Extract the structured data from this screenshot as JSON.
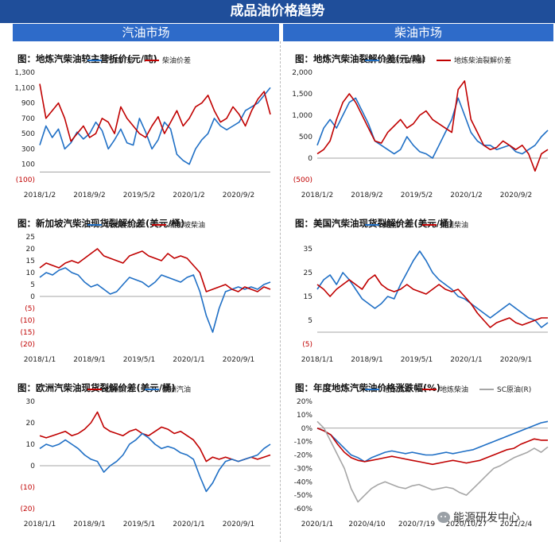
{
  "page": {
    "title": "成品油价格趋势",
    "left_header": "汽油市场",
    "right_header": "柴油市场"
  },
  "watermark": "能源研发中心",
  "colors": {
    "blue": "#1f6fc5",
    "red": "#c00000",
    "gray": "#a6a6a6",
    "negtick": "#c00000"
  },
  "panels": [
    {
      "title": "图：地炼汽柴油较主营折价(元/吨)",
      "chart_data": {
        "type": "line",
        "x_ticks": [
          "2018/1/2",
          "2018/9/2",
          "2019/5/2",
          "2020/1/2",
          "2020/9/2"
        ],
        "y_ticks": [
          "1,300",
          "1,100",
          "900",
          "700",
          "500",
          "300",
          "100",
          "(100)"
        ],
        "ylim": [
          -100,
          1300
        ],
        "legend_position": "top",
        "series": [
          {
            "name": "汽油价差",
            "color": "#1f6fc5",
            "values": [
              350,
              600,
              450,
              560,
              300,
              380,
              520,
              430,
              500,
              650,
              540,
              300,
              420,
              560,
              380,
              350,
              700,
              520,
              300,
              420,
              650,
              560,
              230,
              150,
              100,
              300,
              420,
              500,
              700,
              600,
              550,
              600,
              650,
              800,
              850,
              900,
              1000,
              1100
            ]
          },
          {
            "name": "柴油价差",
            "color": "#c00000",
            "values": [
              1150,
              700,
              800,
              900,
              700,
              400,
              500,
              600,
              450,
              500,
              700,
              650,
              500,
              850,
              700,
              600,
              500,
              450,
              600,
              720,
              500,
              650,
              800,
              600,
              700,
              850,
              900,
              1000,
              800,
              650,
              700,
              850,
              750,
              600,
              800,
              950,
              1050,
              750
            ]
          }
        ]
      }
    },
    {
      "title": "图：地炼汽柴油裂解价差(元/吨)",
      "chart_data": {
        "type": "line",
        "x_ticks": [
          "2018/1/2",
          "2018/9/2",
          "2019/5/2",
          "2020/1/2",
          "2020/9/2"
        ],
        "y_ticks": [
          "2,000",
          "1,500",
          "1,000",
          "500",
          "0",
          "(500)"
        ],
        "ylim": [
          -500,
          2000
        ],
        "legend_position": "top",
        "series": [
          {
            "name": "地炼汽油裂解",
            "color": "#1f6fc5",
            "values": [
              300,
              700,
              900,
              700,
              1000,
              1300,
              1400,
              1100,
              800,
              400,
              300,
              200,
              100,
              200,
              500,
              300,
              150,
              100,
              0,
              300,
              600,
              900,
              1400,
              1000,
              600,
              400,
              300,
              300,
              200,
              250,
              300,
              150,
              100,
              200,
              300,
              500,
              650
            ]
          },
          {
            "name": "地炼柴油裂解价差",
            "color": "#c00000",
            "values": [
              100,
              200,
              400,
              900,
              1300,
              1500,
              1300,
              1000,
              700,
              400,
              350,
              600,
              750,
              900,
              700,
              800,
              1000,
              1100,
              900,
              800,
              700,
              600,
              1600,
              1800,
              900,
              600,
              300,
              200,
              250,
              400,
              300,
              200,
              300,
              100,
              -300,
              100,
              200
            ]
          }
        ]
      }
    },
    {
      "title": "图：新加坡汽柴油现货裂解价差(美元/桶)",
      "chart_data": {
        "type": "line",
        "x_ticks": [
          "2018/1/1",
          "2018/9/1",
          "2019/5/1",
          "2020/1/1",
          "2020/9/1"
        ],
        "y_ticks": [
          "25",
          "20",
          "15",
          "10",
          "5",
          "0",
          "(5)",
          "(10)",
          "(15)",
          "(20)"
        ],
        "ylim": [
          -20,
          25
        ],
        "legend_position": "top",
        "series": [
          {
            "name": "新加坡汽油",
            "color": "#1f6fc5",
            "values": [
              8,
              10,
              9,
              11,
              12,
              10,
              9,
              6,
              4,
              5,
              3,
              1,
              2,
              5,
              8,
              7,
              6,
              4,
              6,
              9,
              8,
              7,
              6,
              8,
              9,
              2,
              -8,
              -15,
              -5,
              2,
              3,
              4,
              3,
              4,
              3,
              5,
              6
            ]
          },
          {
            "name": "新加坡柴油",
            "color": "#c00000",
            "values": [
              12,
              14,
              13,
              12,
              14,
              15,
              14,
              16,
              18,
              20,
              17,
              16,
              15,
              14,
              17,
              18,
              19,
              17,
              16,
              15,
              18,
              16,
              17,
              16,
              13,
              10,
              2,
              3,
              4,
              5,
              3,
              2,
              4,
              3,
              2,
              4,
              3
            ]
          }
        ]
      }
    },
    {
      "title": "图：美国汽柴油现货裂解价差(美元/桶)",
      "chart_data": {
        "type": "line",
        "x_ticks": [
          "2018/1/1",
          "2018/9/1",
          "2019/5/1",
          "2020/1/1",
          "2020/9/1"
        ],
        "y_ticks": [
          "35",
          "25",
          "15",
          "5",
          "(5)"
        ],
        "ylim": [
          -5,
          40
        ],
        "legend_position": "top",
        "series": [
          {
            "name": "美国汽油",
            "color": "#1f6fc5",
            "values": [
              18,
              22,
              24,
              20,
              25,
              22,
              18,
              14,
              12,
              10,
              12,
              15,
              14,
              20,
              25,
              30,
              34,
              30,
              25,
              22,
              20,
              18,
              15,
              14,
              12,
              10,
              8,
              6,
              8,
              10,
              12,
              10,
              8,
              6,
              5,
              2,
              4
            ]
          },
          {
            "name": "美国柴油",
            "color": "#c00000",
            "values": [
              20,
              18,
              15,
              18,
              20,
              22,
              20,
              18,
              22,
              24,
              20,
              18,
              17,
              18,
              20,
              18,
              17,
              16,
              18,
              20,
              18,
              17,
              18,
              15,
              12,
              8,
              5,
              2,
              4,
              5,
              6,
              4,
              3,
              4,
              5,
              6,
              6
            ]
          }
        ]
      }
    },
    {
      "title": "图：欧洲汽柴油现货裂解价差(美元/桶)",
      "chart_data": {
        "type": "line",
        "x_ticks": [
          "2018/1/1",
          "2018/9/1",
          "2019/5/1",
          "2020/1/1",
          "2020/9/1"
        ],
        "y_ticks": [
          "30",
          "20",
          "10",
          "0",
          "(10)",
          "(20)"
        ],
        "ylim": [
          -20,
          30
        ],
        "legend_position": "top",
        "series": [
          {
            "name": "欧洲柴油",
            "color": "#c00000",
            "values": [
              14,
              13,
              14,
              15,
              16,
              14,
              15,
              17,
              20,
              25,
              18,
              16,
              15,
              14,
              16,
              17,
              15,
              14,
              16,
              18,
              17,
              15,
              16,
              14,
              12,
              8,
              2,
              4,
              3,
              4,
              3,
              2,
              3,
              4,
              3,
              4,
              5
            ]
          },
          {
            "name": "欧洲汽油",
            "color": "#1f6fc5",
            "values": [
              8,
              10,
              9,
              10,
              12,
              10,
              8,
              5,
              3,
              2,
              -3,
              0,
              2,
              5,
              10,
              12,
              15,
              13,
              10,
              8,
              9,
              8,
              6,
              5,
              3,
              -5,
              -12,
              -8,
              -2,
              2,
              3,
              2,
              3,
              4,
              5,
              8,
              10
            ]
          }
        ]
      }
    },
    {
      "title": "图：年度地炼汽柴油价格涨跌幅(%)",
      "chart_data": {
        "type": "line",
        "x_ticks": [
          "2020/1/1",
          "2020/4/10",
          "2020/7/19",
          "2020/10/27",
          "2021/2/4"
        ],
        "y_ticks": [
          "20%",
          "10%",
          "0%",
          "-10%",
          "-20%",
          "-30%",
          "-40%",
          "-50%",
          "-60%"
        ],
        "ylim": [
          -60,
          20
        ],
        "legend_position": "top",
        "series": [
          {
            "name": "地炼汽油",
            "color": "#1f6fc5",
            "values": [
              0,
              -2,
              -5,
              -10,
              -15,
              -20,
              -22,
              -25,
              -22,
              -20,
              -18,
              -17,
              -18,
              -19,
              -18,
              -19,
              -20,
              -20,
              -19,
              -18,
              -19,
              -18,
              -17,
              -16,
              -14,
              -12,
              -10,
              -8,
              -6,
              -4,
              -2,
              0,
              2,
              4,
              5
            ]
          },
          {
            "name": "地炼柴油",
            "color": "#c00000",
            "values": [
              0,
              -2,
              -5,
              -12,
              -18,
              -22,
              -24,
              -25,
              -24,
              -23,
              -22,
              -21,
              -22,
              -23,
              -24,
              -25,
              -26,
              -27,
              -26,
              -25,
              -24,
              -25,
              -26,
              -25,
              -24,
              -22,
              -20,
              -18,
              -16,
              -15,
              -12,
              -10,
              -8,
              -9,
              -9
            ]
          },
          {
            "name": "SC原油(R)",
            "color": "#a6a6a6",
            "values": [
              5,
              0,
              -10,
              -20,
              -30,
              -45,
              -55,
              -50,
              -45,
              -42,
              -40,
              -42,
              -44,
              -45,
              -43,
              -42,
              -44,
              -46,
              -45,
              -44,
              -45,
              -48,
              -50,
              -45,
              -40,
              -35,
              -30,
              -28,
              -25,
              -22,
              -20,
              -18,
              -15,
              -18,
              -14
            ]
          }
        ]
      }
    }
  ]
}
